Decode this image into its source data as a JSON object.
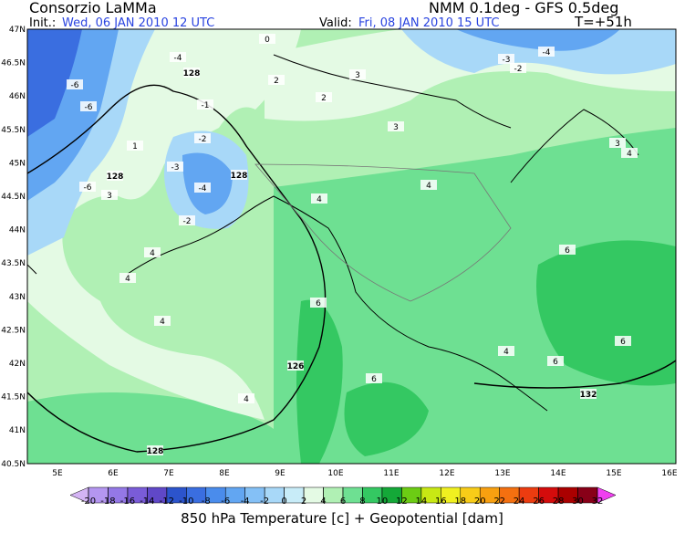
{
  "header": {
    "agency": "Consorzio LaMMa",
    "init_label": "Init.:",
    "init": "Wed, 06 JAN 2010  12 UTC",
    "model": "NMM 0.1deg - GFS 0.5deg",
    "valid_label": "Valid:",
    "valid": "Fri, 08 JAN 2010  15 UTC",
    "lead": "T=+51h"
  },
  "map": {
    "lat_labels": [
      "47N",
      "46.5N",
      "46N",
      "45.5N",
      "45N",
      "44.5N",
      "44N",
      "43.5N",
      "43N",
      "42.5N",
      "42N",
      "41.5N",
      "41N",
      "40.5N"
    ],
    "lon_labels": [
      "5E",
      "6E",
      "7E",
      "8E",
      "9E",
      "10E",
      "11E",
      "12E",
      "13E",
      "14E",
      "15E",
      "16E"
    ],
    "contour_labels": [
      "128",
      "128",
      "128",
      "126",
      "132",
      "128",
      "-6",
      "-6",
      "-4",
      "-2",
      "-3",
      "-6",
      "-4",
      "-2",
      "-4",
      "-3",
      "-2",
      "-1",
      "0",
      "1",
      "2",
      "3",
      "4",
      "4",
      "4",
      "4",
      "4",
      "4",
      "6",
      "6",
      "6",
      "6",
      "6",
      "3",
      "3",
      "2",
      "3",
      "4",
      "4"
    ]
  },
  "colorbar": {
    "ticks": [
      -20,
      -18,
      -16,
      -14,
      -12,
      -10,
      -8,
      -6,
      -4,
      -2,
      0,
      2,
      4,
      6,
      8,
      10,
      12,
      14,
      16,
      18,
      20,
      22,
      24,
      26,
      28,
      30,
      32
    ],
    "colors": [
      "#d4b4f4",
      "#b496f0",
      "#9478e6",
      "#7a5cd8",
      "#6048c8",
      "#2c54cc",
      "#3a6ee0",
      "#4a8cec",
      "#62a6f2",
      "#84c0f6",
      "#a8d8f8",
      "#c8ecf8",
      "#e4fae4",
      "#b0f0b4",
      "#6ee092",
      "#34c862",
      "#14a838",
      "#6ccc14",
      "#c8e814",
      "#f0f020",
      "#f8cc18",
      "#f8a010",
      "#f47010",
      "#ec3c10",
      "#d40c0c",
      "#aa0000",
      "#880018",
      "#f040f0"
    ],
    "title": "850 hPa Temperature [c] + Geopotential [dam]"
  }
}
